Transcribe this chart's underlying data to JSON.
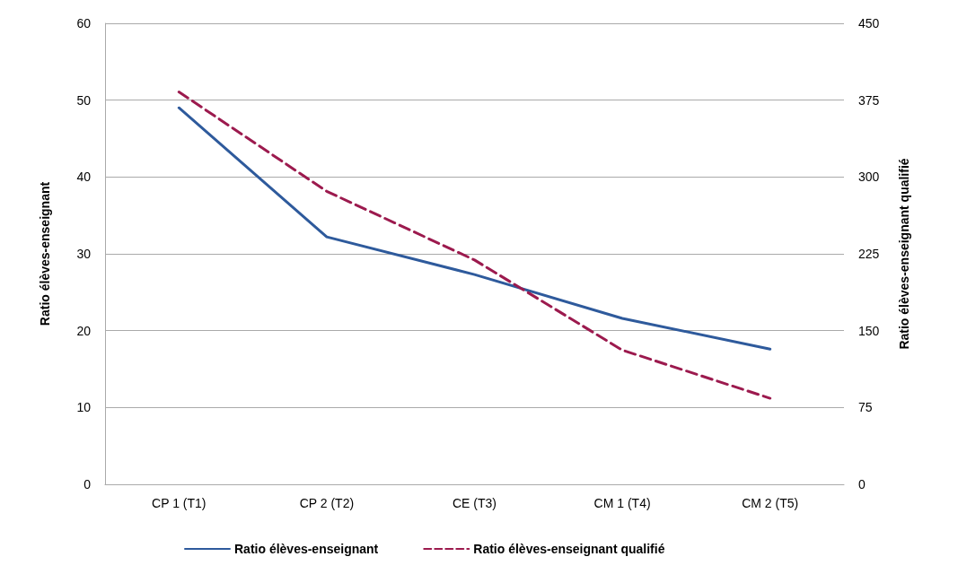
{
  "chart_data": {
    "type": "line",
    "categories": [
      "CP 1 (T1)",
      "CP 2 (T2)",
      "CE (T3)",
      "CM 1 (T4)",
      "CM 2 (T5)"
    ],
    "ylabel": "Ratio élèves-enseignant",
    "y2label": "Ratio élèves-enseignant qualifié",
    "ylim": [
      0,
      60
    ],
    "yticks": [
      0,
      10,
      20,
      30,
      40,
      50,
      60
    ],
    "y2lim": [
      0,
      450
    ],
    "y2ticks": [
      0,
      75,
      150,
      225,
      300,
      375,
      450
    ],
    "grid": "y",
    "legend": "bottom",
    "marker": "none",
    "series": [
      {
        "name": "Ratio élèves-enseignant",
        "color": "#2e5a9c",
        "values": [
          49,
          32.2,
          27.3,
          21.6,
          17.6
        ],
        "line_style": "solid"
      },
      {
        "name": "Ratio élèves-enseignant qualifié",
        "color": "#9c1a4e",
        "values": [
          383,
          286,
          219,
          131,
          84
        ],
        "axis": "y2",
        "line_style": "dashed"
      }
    ]
  }
}
